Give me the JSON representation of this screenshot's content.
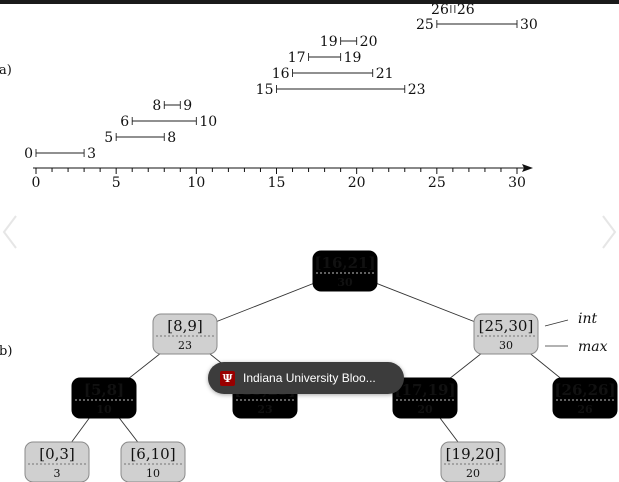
{
  "figure": {
    "part_a_label": "a)",
    "part_b_label": "b)",
    "axis": {
      "min": 0,
      "max": 30,
      "tick_labels": [
        "0",
        "5",
        "10",
        "15",
        "20",
        "25",
        "30"
      ]
    },
    "intervals": [
      {
        "low": "0",
        "high": "3"
      },
      {
        "low": "5",
        "high": "8"
      },
      {
        "low": "6",
        "high": "10"
      },
      {
        "low": "8",
        "high": "9"
      },
      {
        "low": "15",
        "high": "23"
      },
      {
        "low": "16",
        "high": "21"
      },
      {
        "low": "17",
        "high": "19"
      },
      {
        "low": "19",
        "high": "20"
      },
      {
        "low": "25",
        "high": "30"
      },
      {
        "low": "26",
        "high": "26"
      }
    ],
    "tree_nodes": [
      {
        "key": "[16,21]",
        "max": "30",
        "color": "black"
      },
      {
        "key": "[8,9]",
        "max": "23",
        "color": "gray"
      },
      {
        "key": "[25,30]",
        "max": "30",
        "color": "gray"
      },
      {
        "key": "[5,8]",
        "max": "10",
        "color": "black"
      },
      {
        "key": "[15,23]",
        "max": "23",
        "color": "black"
      },
      {
        "key": "[17,19]",
        "max": "20",
        "color": "black"
      },
      {
        "key": "[26,26]",
        "max": "26",
        "color": "black"
      },
      {
        "key": "[0,3]",
        "max": "3",
        "color": "gray"
      },
      {
        "key": "[6,10]",
        "max": "10",
        "color": "gray"
      },
      {
        "key": "[19,20]",
        "max": "20",
        "color": "gray"
      }
    ],
    "annotations": {
      "int_label": "int",
      "max_label": "max"
    },
    "colors": {
      "black_node": "#000000",
      "gray_node": "#d0d0d0",
      "gray_border": "#8a8a8a"
    }
  },
  "overlay": {
    "chip_text": "Indiana University Bloo...",
    "chip_icon": "iu-trident-logo"
  },
  "nav": {
    "prev_icon": "chevron-left-icon",
    "next_icon": "chevron-right-icon"
  }
}
